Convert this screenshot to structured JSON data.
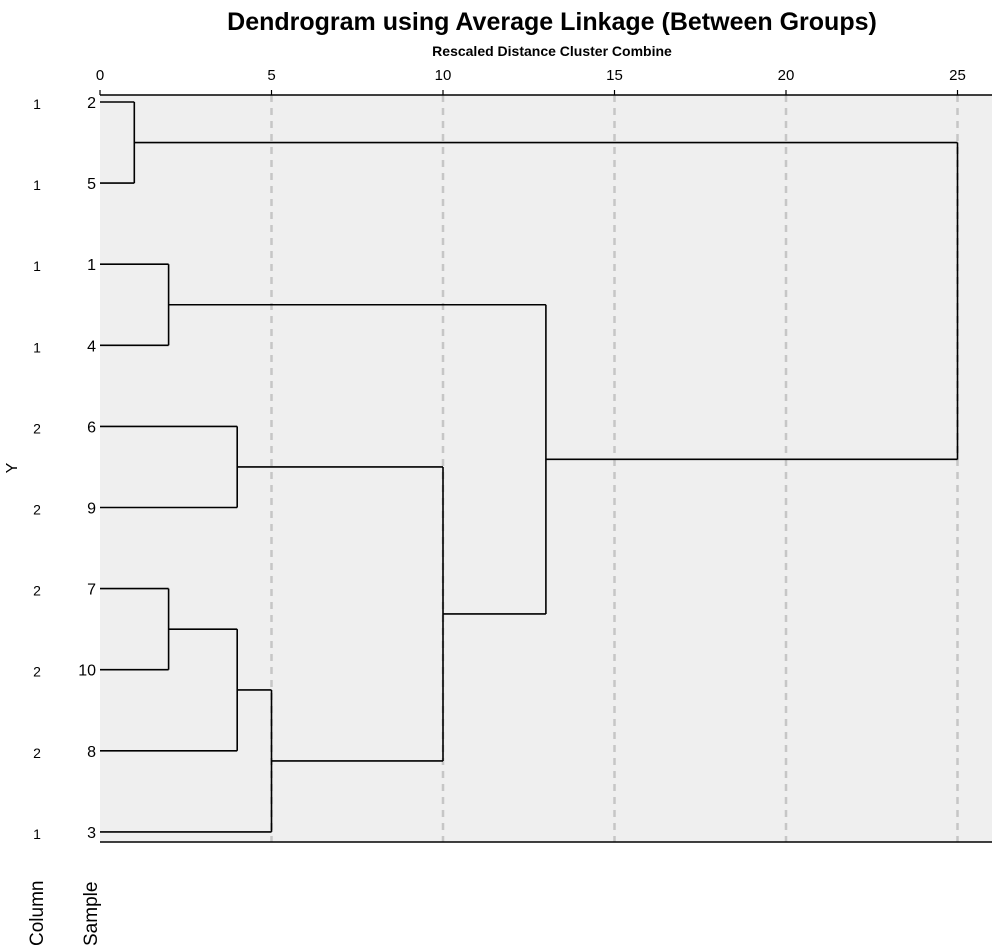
{
  "chart_data": {
    "type": "dendrogram",
    "title": "Dendrogram using Average Linkage (Between Groups)",
    "xlabel": "Rescaled Distance Cluster Combine",
    "xlim": [
      0,
      26
    ],
    "x_ticks": [
      0,
      5,
      10,
      15,
      20,
      25
    ],
    "grid": true,
    "leaf_column_header": "Sample",
    "value_column_header": "Column",
    "value_variable": "Y",
    "leaves": [
      {
        "id": "2",
        "sample": "2",
        "y": "1"
      },
      {
        "id": "5",
        "sample": "5",
        "y": "1"
      },
      {
        "id": "1",
        "sample": "1",
        "y": "1"
      },
      {
        "id": "4",
        "sample": "4",
        "y": "1"
      },
      {
        "id": "6",
        "sample": "6",
        "y": "2"
      },
      {
        "id": "9",
        "sample": "9",
        "y": "2"
      },
      {
        "id": "7",
        "sample": "7",
        "y": "2"
      },
      {
        "id": "10",
        "sample": "10",
        "y": "2"
      },
      {
        "id": "8",
        "sample": "8",
        "y": "2"
      },
      {
        "id": "3",
        "sample": "3",
        "y": "1"
      }
    ],
    "merges": [
      {
        "id": "m1",
        "children": [
          "2",
          "5"
        ],
        "distance": 1
      },
      {
        "id": "m2",
        "children": [
          "1",
          "4"
        ],
        "distance": 2
      },
      {
        "id": "m3",
        "children": [
          "7",
          "10"
        ],
        "distance": 2
      },
      {
        "id": "m4",
        "children": [
          "6",
          "9"
        ],
        "distance": 4
      },
      {
        "id": "m5",
        "children": [
          "m3",
          "8"
        ],
        "distance": 4
      },
      {
        "id": "m6",
        "children": [
          "m5",
          "3"
        ],
        "distance": 5
      },
      {
        "id": "m7",
        "children": [
          "m4",
          "m6"
        ],
        "distance": 10
      },
      {
        "id": "m8",
        "children": [
          "m2",
          "m7"
        ],
        "distance": 13
      },
      {
        "id": "m9",
        "children": [
          "m1",
          "m8"
        ],
        "distance": 25
      }
    ]
  },
  "colors": {
    "plot_background": "#efefef",
    "grid": "#c6c6c6",
    "line": "#000000",
    "text": "#000000"
  }
}
